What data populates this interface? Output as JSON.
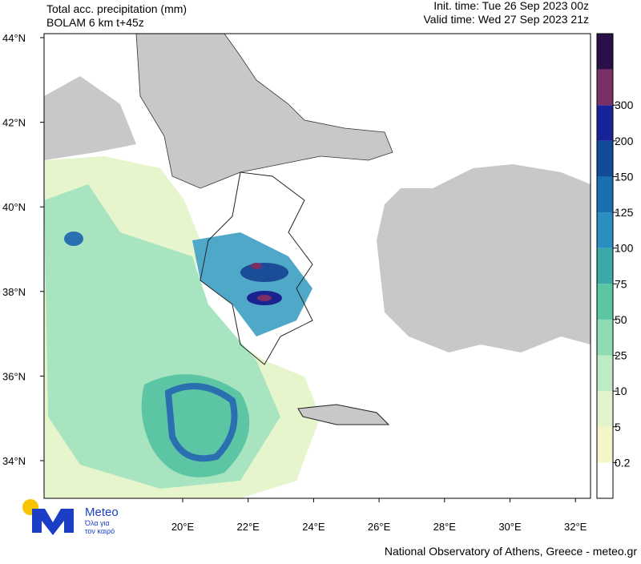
{
  "header": {
    "title": "Total acc. precipitation (mm)",
    "model": "BOLAM 6 km t+45z",
    "init_time": "Init. time: Tue 26 Sep 2023 00z",
    "valid_time": "Valid time: Wed 27 Sep 2023 21z"
  },
  "map": {
    "lat_labels": [
      "44°N",
      "42°N",
      "40°N",
      "38°N",
      "36°N",
      "34°N"
    ],
    "lon_labels": [
      "20°E",
      "22°E",
      "24°E",
      "26°E",
      "28°E",
      "30°E",
      "32°E"
    ]
  },
  "colorbar": {
    "labels": [
      "0.2",
      "5",
      "10",
      "25",
      "50",
      "75",
      "100",
      "125",
      "150",
      "200",
      "300"
    ],
    "colors": [
      "#ffffff",
      "#f4f6c8",
      "#e2f4cc",
      "#bdebc4",
      "#8fdcb4",
      "#5cc6a4",
      "#3aa9a8",
      "#2a8fc0",
      "#1a6fb0",
      "#124c98",
      "#18239a",
      "#7a2f66",
      "#2b0f48"
    ]
  },
  "logo": {
    "name": "Meteo",
    "tagline": [
      "Όλα για",
      "τον καιρό"
    ]
  },
  "footer": "National Observatory of Athens, Greece - meteo.gr"
}
